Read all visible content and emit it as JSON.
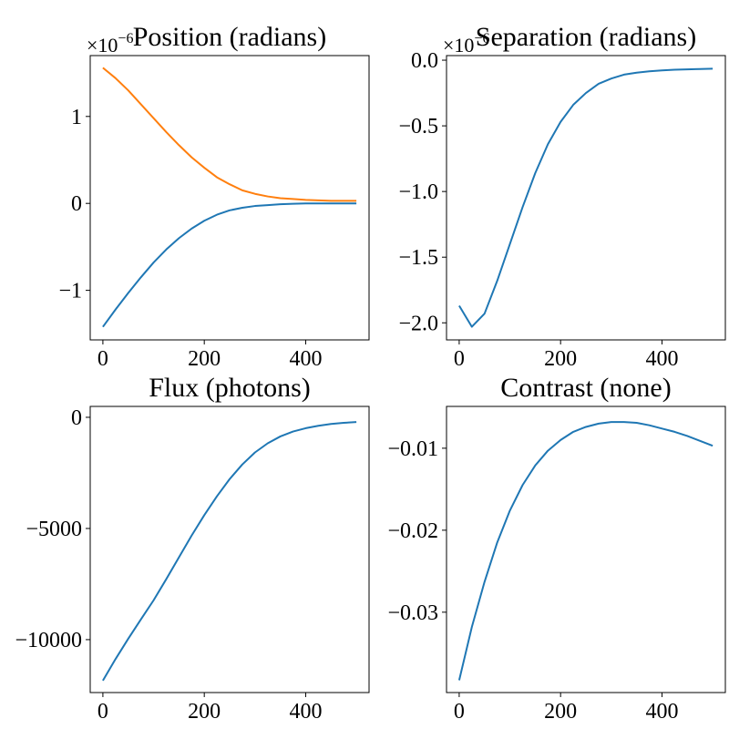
{
  "chart_data": [
    {
      "type": "line",
      "title": "Position (radians)",
      "x": [
        0,
        25,
        50,
        75,
        100,
        125,
        150,
        175,
        200,
        225,
        250,
        275,
        300,
        325,
        350,
        375,
        400,
        425,
        450,
        475,
        500
      ],
      "series": [
        {
          "color": "#1f77b4",
          "values": [
            -1.42,
            -1.22,
            -1.03,
            -0.85,
            -0.68,
            -0.53,
            -0.4,
            -0.29,
            -0.2,
            -0.13,
            -0.08,
            -0.05,
            -0.03,
            -0.02,
            -0.01,
            -0.005,
            0,
            0,
            0,
            0,
            0
          ]
        },
        {
          "color": "#ff7f0e",
          "values": [
            1.56,
            1.44,
            1.3,
            1.14,
            0.98,
            0.82,
            0.67,
            0.53,
            0.41,
            0.3,
            0.22,
            0.15,
            0.11,
            0.08,
            0.06,
            0.05,
            0.04,
            0.035,
            0.03,
            0.03,
            0.03
          ]
        }
      ],
      "xlim": [
        -25,
        525
      ],
      "xticks": [
        0,
        200,
        400
      ],
      "ylim": [
        -1.57,
        1.7
      ],
      "yticks": [
        {
          "value": -1,
          "label": "−1"
        },
        0,
        1
      ],
      "y_offset": {
        "base": "×10",
        "exponent": "−6"
      }
    },
    {
      "type": "line",
      "title": "Separation (radians)",
      "x": [
        0,
        25,
        50,
        75,
        100,
        125,
        150,
        175,
        200,
        225,
        250,
        275,
        300,
        325,
        350,
        375,
        400,
        425,
        450,
        475,
        500
      ],
      "series": [
        {
          "color": "#1f77b4",
          "values": [
            -1.87,
            -2.03,
            -1.93,
            -1.68,
            -1.4,
            -1.12,
            -0.86,
            -0.64,
            -0.47,
            -0.34,
            -0.25,
            -0.18,
            -0.14,
            -0.11,
            -0.095,
            -0.085,
            -0.078,
            -0.073,
            -0.07,
            -0.067,
            -0.065
          ]
        }
      ],
      "xlim": [
        -25,
        525
      ],
      "xticks": [
        0,
        200,
        400
      ],
      "ylim": [
        -2.13,
        0.035
      ],
      "yticks": [
        {
          "value": -2.0,
          "label": "−2.0"
        },
        {
          "value": -1.5,
          "label": "−1.5"
        },
        {
          "value": -1.0,
          "label": "−1.0"
        },
        {
          "value": -0.5,
          "label": "−0.5"
        },
        {
          "value": 0,
          "label": "0.0"
        }
      ],
      "y_offset": {
        "base": "×10",
        "exponent": "−6"
      }
    },
    {
      "type": "line",
      "title": "Flux (photons)",
      "x": [
        0,
        25,
        50,
        75,
        100,
        125,
        150,
        175,
        200,
        225,
        250,
        275,
        300,
        325,
        350,
        375,
        400,
        425,
        450,
        475,
        500
      ],
      "series": [
        {
          "color": "#1f77b4",
          "values": [
            -11840,
            -10870,
            -9960,
            -9090,
            -8230,
            -7280,
            -6300,
            -5320,
            -4400,
            -3550,
            -2780,
            -2120,
            -1580,
            -1170,
            -860,
            -640,
            -490,
            -380,
            -300,
            -250,
            -210
          ]
        }
      ],
      "xlim": [
        -25,
        525
      ],
      "xticks": [
        0,
        200,
        400
      ],
      "ylim": [
        -12380,
        490
      ],
      "yticks": [
        {
          "value": -10000,
          "label": "−10000"
        },
        {
          "value": -5000,
          "label": "−5000"
        },
        0
      ]
    },
    {
      "type": "line",
      "title": "Contrast (none)",
      "x": [
        0,
        25,
        50,
        75,
        100,
        125,
        150,
        175,
        200,
        225,
        250,
        275,
        300,
        325,
        350,
        375,
        400,
        425,
        450,
        475,
        500
      ],
      "series": [
        {
          "color": "#1f77b4",
          "values": [
            -0.0383,
            -0.0318,
            -0.0263,
            -0.0215,
            -0.0176,
            -0.0145,
            -0.0121,
            -0.0103,
            -0.009,
            -0.008,
            -0.0074,
            -0.007,
            -0.0068,
            -0.0068,
            -0.0069,
            -0.0072,
            -0.0076,
            -0.008,
            -0.0085,
            -0.0091,
            -0.0097
          ]
        }
      ],
      "xlim": [
        -25,
        525
      ],
      "xticks": [
        0,
        200,
        400
      ],
      "ylim": [
        -0.0398,
        -0.0049
      ],
      "yticks": [
        {
          "value": -0.03,
          "label": "−0.03"
        },
        {
          "value": -0.02,
          "label": "−0.02"
        },
        {
          "value": -0.01,
          "label": "−0.01"
        }
      ]
    }
  ]
}
